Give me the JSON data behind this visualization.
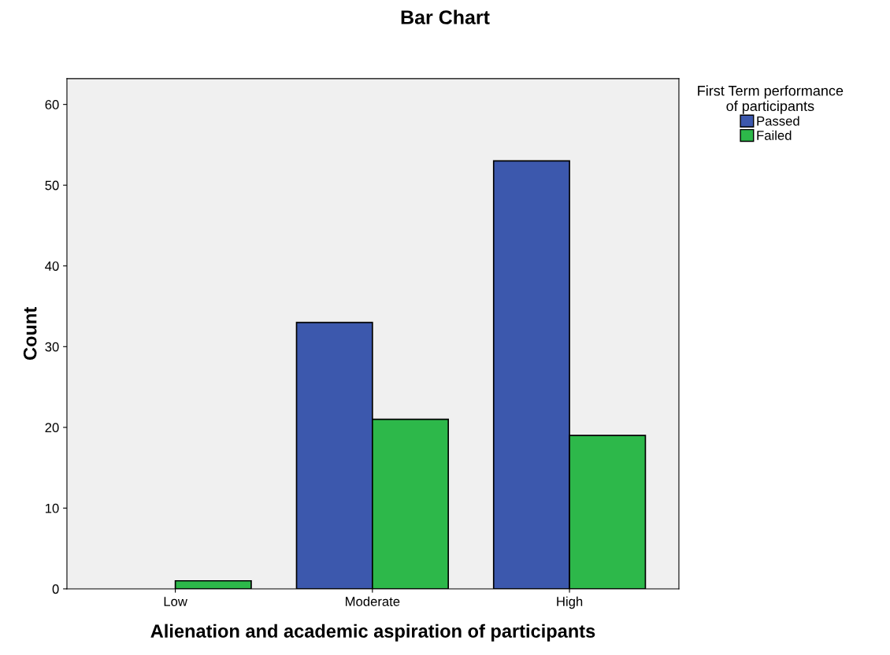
{
  "chart_data": {
    "type": "bar",
    "title": "Bar Chart",
    "xlabel": "Alienation and academic aspiration of participants",
    "ylabel": "Count",
    "legend_title": "First Term performance\nof participants",
    "categories": [
      "Low",
      "Moderate",
      "High"
    ],
    "series": [
      {
        "name": "Passed",
        "color": "#3c58ad",
        "values": [
          null,
          33,
          53
        ]
      },
      {
        "name": "Failed",
        "color": "#2db84a",
        "values": [
          1,
          21,
          19
        ]
      }
    ],
    "ylim": [
      0,
      63.2
    ],
    "yticks": [
      0,
      10,
      20,
      30,
      40,
      50,
      60
    ],
    "grid": false,
    "legend": "top right"
  }
}
